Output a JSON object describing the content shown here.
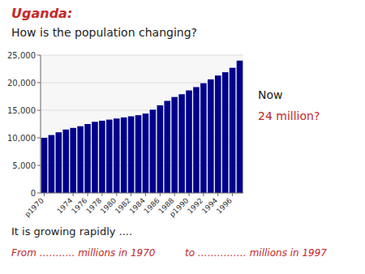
{
  "chart_data": {
    "type": "bar",
    "title": "Uganda:",
    "subtitle": "How is the population changing?",
    "annotations": [
      "Now",
      "24 million?",
      "It is growing rapidly ....",
      "From ……….. millions in 1970",
      "to …………… millions in 1997"
    ],
    "categories": [
      "p1970",
      null,
      null,
      null,
      "1974",
      null,
      "1976",
      null,
      "1978",
      null,
      "1980",
      null,
      "1982",
      null,
      "1984",
      null,
      "1986",
      null,
      "1988",
      null,
      "p1990",
      null,
      "1992",
      null,
      "1994",
      null,
      "1996",
      null
    ],
    "values": [
      10000,
      10500,
      11000,
      11500,
      11800,
      12100,
      12500,
      12900,
      13100,
      13300,
      13500,
      13700,
      13900,
      14100,
      14400,
      15100,
      15900,
      16700,
      17400,
      17900,
      18600,
      19200,
      19900,
      20600,
      21300,
      21900,
      22700,
      24000
    ],
    "color": "#00008b",
    "ylim": [
      0,
      25000
    ],
    "yticks": [
      0,
      {
        "value": 5000,
        "label": "5,000"
      },
      {
        "value": 10000,
        "label": "10,000"
      },
      {
        "value": 15000,
        "label": "15,000"
      },
      {
        "value": 20000,
        "label": "20,000"
      },
      {
        "value": 25000,
        "label": "25,000"
      }
    ],
    "grid": true
  }
}
